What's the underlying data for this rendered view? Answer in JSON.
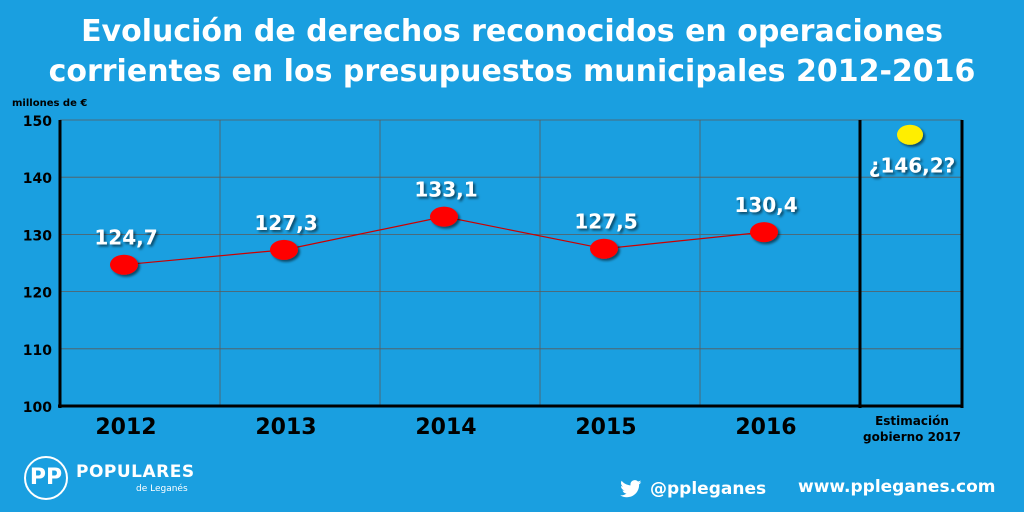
{
  "title": {
    "line1": "Evolución de derechos reconocidos en operaciones",
    "line2": "corrientes en los presupuestos municipales 2012-2016"
  },
  "chart_data": {
    "type": "line",
    "ylabel": "millones de €",
    "ylim": [
      100,
      150
    ],
    "yticks": [
      100,
      110,
      120,
      130,
      140,
      150
    ],
    "categories": [
      "2012",
      "2013",
      "2014",
      "2015",
      "2016"
    ],
    "values": [
      124.7,
      127.3,
      133.1,
      127.5,
      130.4
    ],
    "value_labels": [
      "124,7",
      "127,3",
      "133,1",
      "127,5",
      "130,4"
    ],
    "estimate": {
      "category_line1": "Estimación",
      "category_line2": "gobierno 2017",
      "value": 146.2,
      "label": "¿146,2?"
    },
    "grid": true,
    "colors": {
      "background": "#1a9fe0",
      "points": "#ff0000",
      "line": "#cc0000",
      "estimate_point": "#ffee00",
      "axis": "#000000",
      "grid": "#5a5a5a"
    }
  },
  "footer": {
    "logo_mark": "PP",
    "logo_name": "POPULARES",
    "logo_sub": "de Leganés",
    "twitter_icon": "twitter-bird-icon",
    "twitter_handle": "@ppleganes",
    "website": "www.ppleganes.com"
  }
}
